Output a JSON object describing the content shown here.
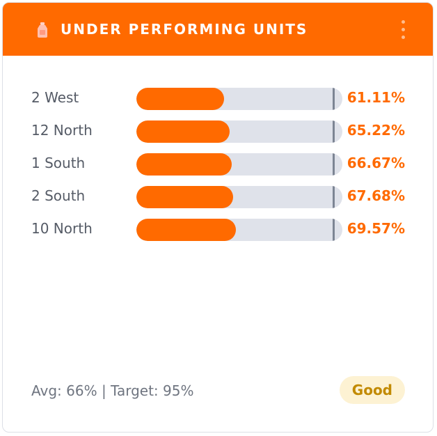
{
  "header": {
    "title": "UNDER PERFORMING UNITS",
    "icon": "bottle-icon",
    "menu_icon": "more-vertical-icon"
  },
  "units": [
    {
      "label": "2 West",
      "value_text": "61.11%",
      "value": 61.11
    },
    {
      "label": "12 North",
      "value_text": "65.22%",
      "value": 65.22
    },
    {
      "label": "1 South",
      "value_text": "66.67%",
      "value": 66.67
    },
    {
      "label": "2 South",
      "value_text": "67.68%",
      "value": 67.68
    },
    {
      "label": "10 North",
      "value_text": "69.57%",
      "value": 69.57
    }
  ],
  "footer": {
    "summary": "Avg: 66% | Target: 95%",
    "status": "Good"
  },
  "colors": {
    "accent": "#ff6a00",
    "track": "#dfe2ea",
    "target_marker": "#7d8594",
    "badge_background": "#fdf2d3",
    "badge_text": "#c28a00"
  }
}
